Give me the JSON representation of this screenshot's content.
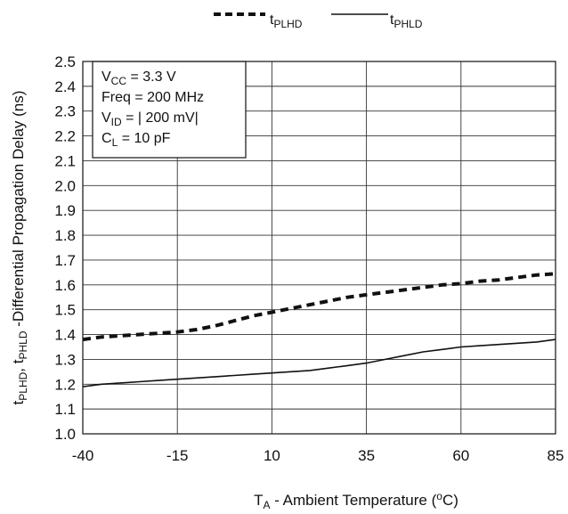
{
  "chart_data": {
    "type": "line",
    "xlabel": {
      "main": "T",
      "sub": "A",
      "rest": " - Ambient Temperature (",
      "deg": "o",
      "unit_end": "C)"
    },
    "ylabel": {
      "p1": "t",
      "p1sub": "PLHD",
      "p2": ", t",
      "p2sub": "PHLD",
      "p3": " -Differential Propagation Delay (ns)"
    },
    "xlim": [
      -40,
      85
    ],
    "ylim": [
      1.0,
      2.5
    ],
    "x_ticks": [
      "-40",
      "-15",
      "10",
      "35",
      "60",
      "85"
    ],
    "y_ticks": [
      "1.0",
      "1.1",
      "1.2",
      "1.3",
      "1.4",
      "1.5",
      "1.6",
      "1.7",
      "1.8",
      "1.9",
      "2.0",
      "2.1",
      "2.2",
      "2.3",
      "2.4",
      "2.5"
    ],
    "grid": true,
    "legend_position": "top",
    "series": [
      {
        "name": {
          "main": "t",
          "sub": "PLHD"
        },
        "style": "dashed",
        "x": [
          -40,
          -35,
          -30,
          -25,
          -20,
          -15,
          -10,
          -5,
          0,
          5,
          10,
          15,
          20,
          25,
          30,
          35,
          40,
          45,
          50,
          55,
          60,
          65,
          70,
          75,
          80,
          85
        ],
        "y": [
          1.38,
          1.39,
          1.395,
          1.4,
          1.405,
          1.41,
          1.42,
          1.435,
          1.455,
          1.475,
          1.49,
          1.505,
          1.52,
          1.535,
          1.55,
          1.56,
          1.57,
          1.58,
          1.59,
          1.6,
          1.605,
          1.615,
          1.62,
          1.63,
          1.64,
          1.645
        ]
      },
      {
        "name": {
          "main": "t",
          "sub": "PHLD"
        },
        "style": "solid",
        "x": [
          -40,
          -35,
          -30,
          -25,
          -20,
          -15,
          -10,
          -5,
          0,
          5,
          10,
          15,
          20,
          25,
          30,
          35,
          40,
          45,
          50,
          55,
          60,
          65,
          70,
          75,
          80,
          85
        ],
        "y": [
          1.19,
          1.2,
          1.205,
          1.21,
          1.215,
          1.22,
          1.225,
          1.23,
          1.235,
          1.24,
          1.245,
          1.25,
          1.255,
          1.265,
          1.275,
          1.285,
          1.3,
          1.315,
          1.33,
          1.34,
          1.35,
          1.355,
          1.36,
          1.365,
          1.37,
          1.38
        ]
      }
    ],
    "conditions": [
      {
        "main": "V",
        "sub": "CC",
        "rest": " = 3.3 V"
      },
      {
        "main": "Freq",
        "sub": "",
        "rest": " = 200 MHz"
      },
      {
        "main": "V",
        "sub": "ID",
        "rest": "  = | 200 mV|"
      },
      {
        "main": "C",
        "sub": "L",
        "rest": "   = 10 pF"
      }
    ]
  }
}
